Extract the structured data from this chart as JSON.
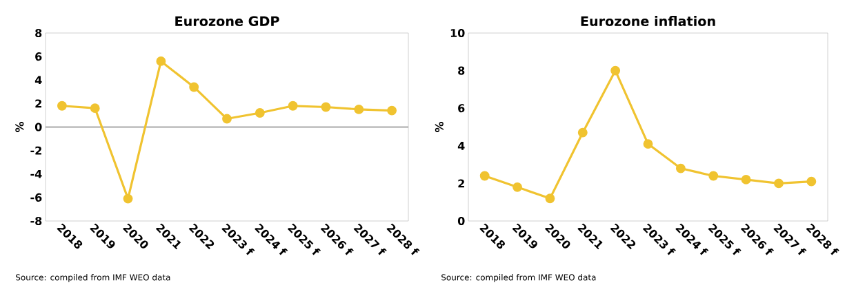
{
  "chart_data": [
    {
      "type": "line",
      "title": "Eurozone GDP",
      "ylabel": "%",
      "categories": [
        "2018",
        "2019",
        "2020",
        "2021",
        "2022",
        "2023 f",
        "2024 f",
        "2025 f",
        "2026 f",
        "2027 f",
        "2028 f"
      ],
      "series": [
        {
          "color": "#f0c330",
          "values": [
            1.8,
            1.6,
            -6.1,
            5.6,
            3.4,
            0.7,
            1.2,
            1.8,
            1.7,
            1.5,
            1.4
          ]
        }
      ],
      "ylim": [
        -8,
        8
      ],
      "yticks": [
        -8,
        -6,
        -4,
        -2,
        0,
        2,
        4,
        6,
        8
      ],
      "ref_lines": [
        {
          "axis": "y",
          "value": 0,
          "color": "#7f7f7f"
        }
      ],
      "marker": "circle",
      "line_style": "solid",
      "annotations": [
        "Source: compiled from IMF WEO data"
      ]
    },
    {
      "type": "line",
      "title": "Eurozone inflation",
      "ylabel": "%",
      "categories": [
        "2018",
        "2019",
        "2020",
        "2021",
        "2022",
        "2023 f",
        "2024 f",
        "2025 f",
        "2026 f",
        "2027 f",
        "2028 f"
      ],
      "series": [
        {
          "color": "#f0c330",
          "values": [
            2.4,
            1.8,
            1.2,
            4.7,
            8.0,
            4.1,
            2.8,
            2.4,
            2.2,
            2.0,
            2.1
          ]
        }
      ],
      "ylim": [
        0,
        10
      ],
      "yticks": [
        0,
        2,
        4,
        6,
        8,
        10
      ],
      "marker": "circle",
      "line_style": "solid",
      "annotations": [
        "Source: compiled from IMF WEO data"
      ]
    }
  ]
}
